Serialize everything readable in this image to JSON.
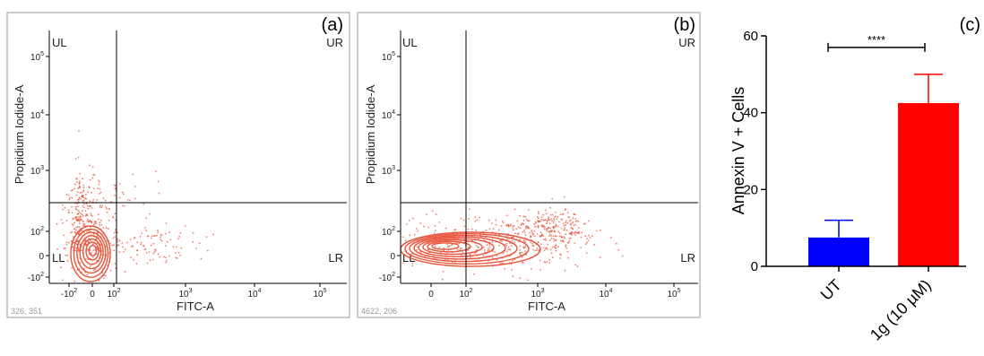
{
  "panels": [
    {
      "label": "(a)",
      "quadrants": {
        "ul": "UL",
        "ur": "UR",
        "ll": "LL",
        "lr": "LR"
      },
      "xlabel": "FITC-A",
      "ylabel": "Propidium Iodide-A",
      "event_count": "326, 351",
      "x_ticks": [
        {
          "label": "-10",
          "sup": "2"
        },
        {
          "label": "0",
          "sup": ""
        },
        {
          "label": "10",
          "sup": "2"
        },
        {
          "label": "10",
          "sup": "3"
        },
        {
          "label": "10",
          "sup": "4"
        },
        {
          "label": "10",
          "sup": "5"
        }
      ],
      "y_ticks": [
        {
          "label": "-10",
          "sup": "2"
        },
        {
          "label": "0",
          "sup": ""
        },
        {
          "label": "10",
          "sup": "2"
        },
        {
          "label": "10",
          "sup": "3"
        },
        {
          "label": "10",
          "sup": "4"
        },
        {
          "label": "10",
          "sup": "5"
        }
      ]
    },
    {
      "label": "(b)",
      "quadrants": {
        "ul": "UL",
        "ur": "UR",
        "ll": "LL",
        "lr": "LR"
      },
      "xlabel": "FITC-A",
      "ylabel": "Propidium Iodide-A",
      "event_count": "4622, 206",
      "x_ticks": [
        {
          "label": "0",
          "sup": ""
        },
        {
          "label": "10",
          "sup": "2"
        },
        {
          "label": "10",
          "sup": "3"
        },
        {
          "label": "10",
          "sup": "4"
        },
        {
          "label": "10",
          "sup": "5"
        }
      ],
      "y_ticks": [
        {
          "label": "-10",
          "sup": "2"
        },
        {
          "label": "0",
          "sup": ""
        },
        {
          "label": "10",
          "sup": "2"
        },
        {
          "label": "10",
          "sup": "3"
        },
        {
          "label": "10",
          "sup": "4"
        },
        {
          "label": "10",
          "sup": "5"
        }
      ]
    }
  ],
  "chart_data": [
    {
      "type": "scatter",
      "panel": "(a)",
      "xlabel": "FITC-A",
      "ylabel": "Propidium Iodide-A",
      "x_scale": "biexponential",
      "y_scale": "biexponential",
      "gate": {
        "x": 100,
        "y": 500
      },
      "population_centers": [
        {
          "x": 0,
          "y": 0,
          "quadrant": "LL"
        }
      ],
      "color": "#e8553d"
    },
    {
      "type": "scatter",
      "panel": "(b)",
      "xlabel": "FITC-A",
      "ylabel": "Propidium Iodide-A",
      "x_scale": "biexponential",
      "y_scale": "biexponential",
      "gate": {
        "x": 100,
        "y": 500
      },
      "population_centers": [
        {
          "x": 50,
          "y": 0,
          "quadrant": "LL/LR"
        }
      ],
      "color": "#e8553d"
    },
    {
      "type": "bar",
      "panel": "(c)",
      "categories": [
        "UT",
        "1g (10 µM)"
      ],
      "values": [
        7.5,
        42.5
      ],
      "errors": [
        4.5,
        7.5
      ],
      "colors": [
        "#0000ff",
        "#ff0000"
      ],
      "ylabel": "Annexin V + Cells",
      "ylim": [
        0,
        60
      ],
      "yticks": [
        0,
        20,
        40,
        60
      ],
      "significance": "****"
    }
  ]
}
